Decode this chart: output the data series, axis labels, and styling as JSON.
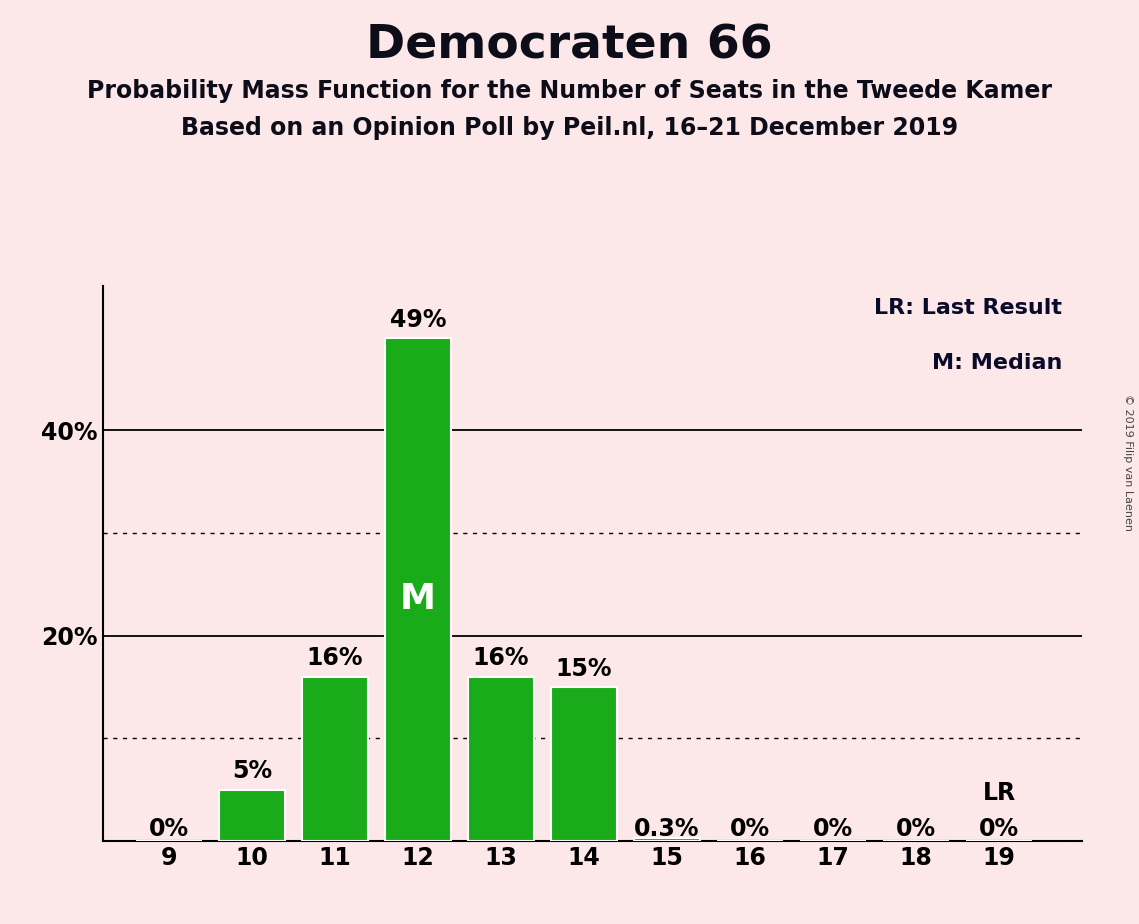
{
  "title": "Democraten 66",
  "subtitle1": "Probability Mass Function for the Number of Seats in the Tweede Kamer",
  "subtitle2": "Based on an Opinion Poll by Peil.nl, 16–21 December 2019",
  "copyright": "© 2019 Filip van Laenen",
  "seats": [
    9,
    10,
    11,
    12,
    13,
    14,
    15,
    16,
    17,
    18,
    19
  ],
  "probabilities": [
    0.0,
    5.0,
    16.0,
    49.0,
    16.0,
    15.0,
    0.3,
    0.0,
    0.0,
    0.0,
    0.0
  ],
  "bar_color": "#1aab1a",
  "bar_edge_color": "#ffffff",
  "background_color": "#fce8e8",
  "median_seat": 12,
  "last_result_seat": 19,
  "solid_gridlines": [
    20.0,
    40.0
  ],
  "dotted_gridlines": [
    10.0,
    30.0
  ],
  "legend_text1": "LR: Last Result",
  "legend_text2": "M: Median",
  "lr_label": "LR",
  "m_label": "M",
  "title_fontsize": 34,
  "subtitle_fontsize": 17,
  "label_fontsize": 16,
  "tick_fontsize": 17,
  "bar_label_fontsize": 17,
  "m_fontsize": 26,
  "copyright_fontsize": 8
}
